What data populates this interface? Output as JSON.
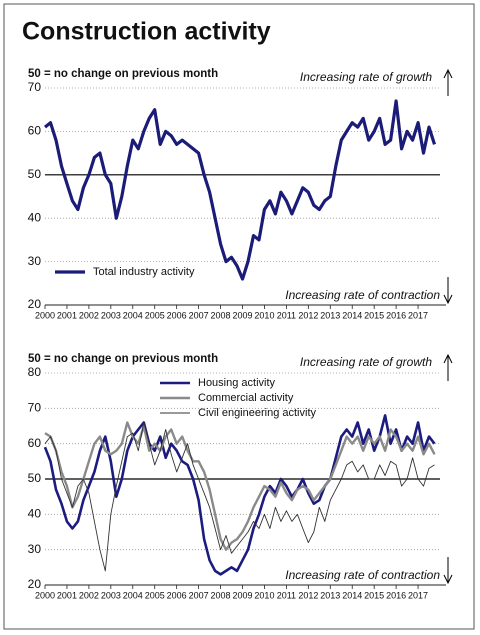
{
  "title": "Construction activity",
  "chart_data": [
    {
      "type": "line",
      "note": "50 = no change on previous month",
      "annotation_top": "Increasing rate of growth",
      "annotation_bottom": "Increasing rate of contraction",
      "baseline": 50,
      "xlim": [
        2000,
        2018
      ],
      "xticks": [
        2000,
        2001,
        2002,
        2003,
        2004,
        2005,
        2006,
        2007,
        2008,
        2009,
        2010,
        2011,
        2012,
        2013,
        2014,
        2015,
        2016,
        2017
      ],
      "ylim": [
        20,
        70
      ],
      "yticks": [
        20,
        30,
        40,
        50,
        60,
        70
      ],
      "grid": true,
      "x": [
        2000,
        2000.25,
        2000.5,
        2000.75,
        2001,
        2001.25,
        2001.5,
        2001.75,
        2002,
        2002.25,
        2002.5,
        2002.75,
        2003,
        2003.25,
        2003.5,
        2003.75,
        2004,
        2004.25,
        2004.5,
        2004.75,
        2005,
        2005.25,
        2005.5,
        2005.75,
        2006,
        2006.25,
        2006.5,
        2006.75,
        2007,
        2007.25,
        2007.5,
        2007.75,
        2008,
        2008.25,
        2008.5,
        2008.75,
        2009,
        2009.25,
        2009.5,
        2009.75,
        2010,
        2010.25,
        2010.5,
        2010.75,
        2011,
        2011.25,
        2011.5,
        2011.75,
        2012,
        2012.25,
        2012.5,
        2012.75,
        2013,
        2013.25,
        2013.5,
        2013.75,
        2014,
        2014.25,
        2014.5,
        2014.75,
        2015,
        2015.25,
        2015.5,
        2015.75,
        2016,
        2016.25,
        2016.5,
        2016.75,
        2017,
        2017.25,
        2017.5,
        2017.75
      ],
      "series": [
        {
          "name": "Total industry activity",
          "color": "#1b1b78",
          "line_width": 3.2,
          "values": [
            61,
            62,
            58,
            52,
            48,
            44,
            42,
            47,
            50,
            54,
            55,
            50,
            48,
            40,
            45,
            52,
            58,
            56,
            60,
            63,
            65,
            57,
            60,
            59,
            57,
            58,
            57,
            56,
            55,
            50,
            46,
            40,
            34,
            30,
            31,
            29,
            26,
            30,
            36,
            35,
            42,
            44,
            41,
            46,
            44,
            41,
            44,
            47,
            46,
            43,
            42,
            44,
            45,
            52,
            58,
            60,
            62,
            61,
            63,
            58,
            60,
            63,
            57,
            58,
            67,
            56,
            60,
            58,
            62,
            55,
            61,
            57
          ]
        }
      ]
    },
    {
      "type": "line",
      "note": "50 = no change on previous month",
      "annotation_top": "Increasing rate of growth",
      "annotation_bottom": "Increasing rate of contraction",
      "baseline": 50,
      "xlim": [
        2000,
        2018
      ],
      "xticks": [
        2000,
        2001,
        2002,
        2003,
        2004,
        2005,
        2006,
        2007,
        2008,
        2009,
        2010,
        2011,
        2012,
        2013,
        2014,
        2015,
        2016,
        2017
      ],
      "ylim": [
        20,
        80
      ],
      "yticks": [
        20,
        30,
        40,
        50,
        60,
        70,
        80
      ],
      "grid": true,
      "x": [
        2000,
        2000.25,
        2000.5,
        2000.75,
        2001,
        2001.25,
        2001.5,
        2001.75,
        2002,
        2002.25,
        2002.5,
        2002.75,
        2003,
        2003.25,
        2003.5,
        2003.75,
        2004,
        2004.25,
        2004.5,
        2004.75,
        2005,
        2005.25,
        2005.5,
        2005.75,
        2006,
        2006.25,
        2006.5,
        2006.75,
        2007,
        2007.25,
        2007.5,
        2007.75,
        2008,
        2008.25,
        2008.5,
        2008.75,
        2009,
        2009.25,
        2009.5,
        2009.75,
        2010,
        2010.25,
        2010.5,
        2010.75,
        2011,
        2011.25,
        2011.5,
        2011.75,
        2012,
        2012.25,
        2012.5,
        2012.75,
        2013,
        2013.25,
        2013.5,
        2013.75,
        2014,
        2014.25,
        2014.5,
        2014.75,
        2015,
        2015.25,
        2015.5,
        2015.75,
        2016,
        2016.25,
        2016.5,
        2016.75,
        2017,
        2017.25,
        2017.5,
        2017.75
      ],
      "series": [
        {
          "name": "Housing activity",
          "color": "#1c1c80",
          "line_width": 2.6,
          "values": [
            59,
            55,
            47,
            43,
            38,
            36,
            38,
            44,
            48,
            52,
            58,
            62,
            55,
            45,
            50,
            58,
            62,
            64,
            66,
            60,
            58,
            62,
            56,
            60,
            58,
            55,
            54,
            50,
            44,
            33,
            27,
            24,
            23,
            24,
            25,
            24,
            27,
            30,
            36,
            40,
            45,
            48,
            46,
            50,
            48,
            45,
            47,
            50,
            46,
            43,
            44,
            48,
            50,
            56,
            62,
            64,
            62,
            66,
            60,
            64,
            58,
            62,
            68,
            60,
            64,
            58,
            62,
            60,
            66,
            58,
            62,
            60
          ]
        },
        {
          "name": "Commercial activity",
          "color": "#8a8a8a",
          "line_width": 2.4,
          "values": [
            63,
            62,
            58,
            52,
            48,
            42,
            45,
            50,
            55,
            60,
            62,
            58,
            57,
            58,
            60,
            66,
            62,
            60,
            65,
            58,
            60,
            58,
            62,
            64,
            60,
            62,
            58,
            55,
            55,
            52,
            47,
            40,
            33,
            30,
            32,
            33,
            35,
            38,
            42,
            45,
            48,
            47,
            45,
            49,
            46,
            44,
            47,
            48,
            47,
            44,
            46,
            48,
            50,
            54,
            58,
            62,
            60,
            62,
            58,
            62,
            60,
            62,
            58,
            64,
            62,
            58,
            60,
            58,
            62,
            57,
            60,
            57
          ]
        },
        {
          "name": "Civil engineering activity",
          "color": "#333333",
          "line_width": 0.9,
          "values": [
            60,
            62,
            58,
            50,
            46,
            42,
            48,
            50,
            46,
            38,
            30,
            24,
            40,
            48,
            55,
            62,
            63,
            58,
            66,
            60,
            54,
            58,
            64,
            57,
            52,
            56,
            60,
            54,
            50,
            46,
            42,
            36,
            30,
            34,
            29,
            31,
            33,
            35,
            38,
            36,
            40,
            36,
            42,
            38,
            41,
            38,
            40,
            36,
            32,
            35,
            42,
            38,
            44,
            47,
            50,
            54,
            55,
            52,
            54,
            50,
            50,
            54,
            51,
            55,
            54,
            48,
            50,
            56,
            50,
            48,
            53,
            54
          ]
        }
      ]
    }
  ]
}
